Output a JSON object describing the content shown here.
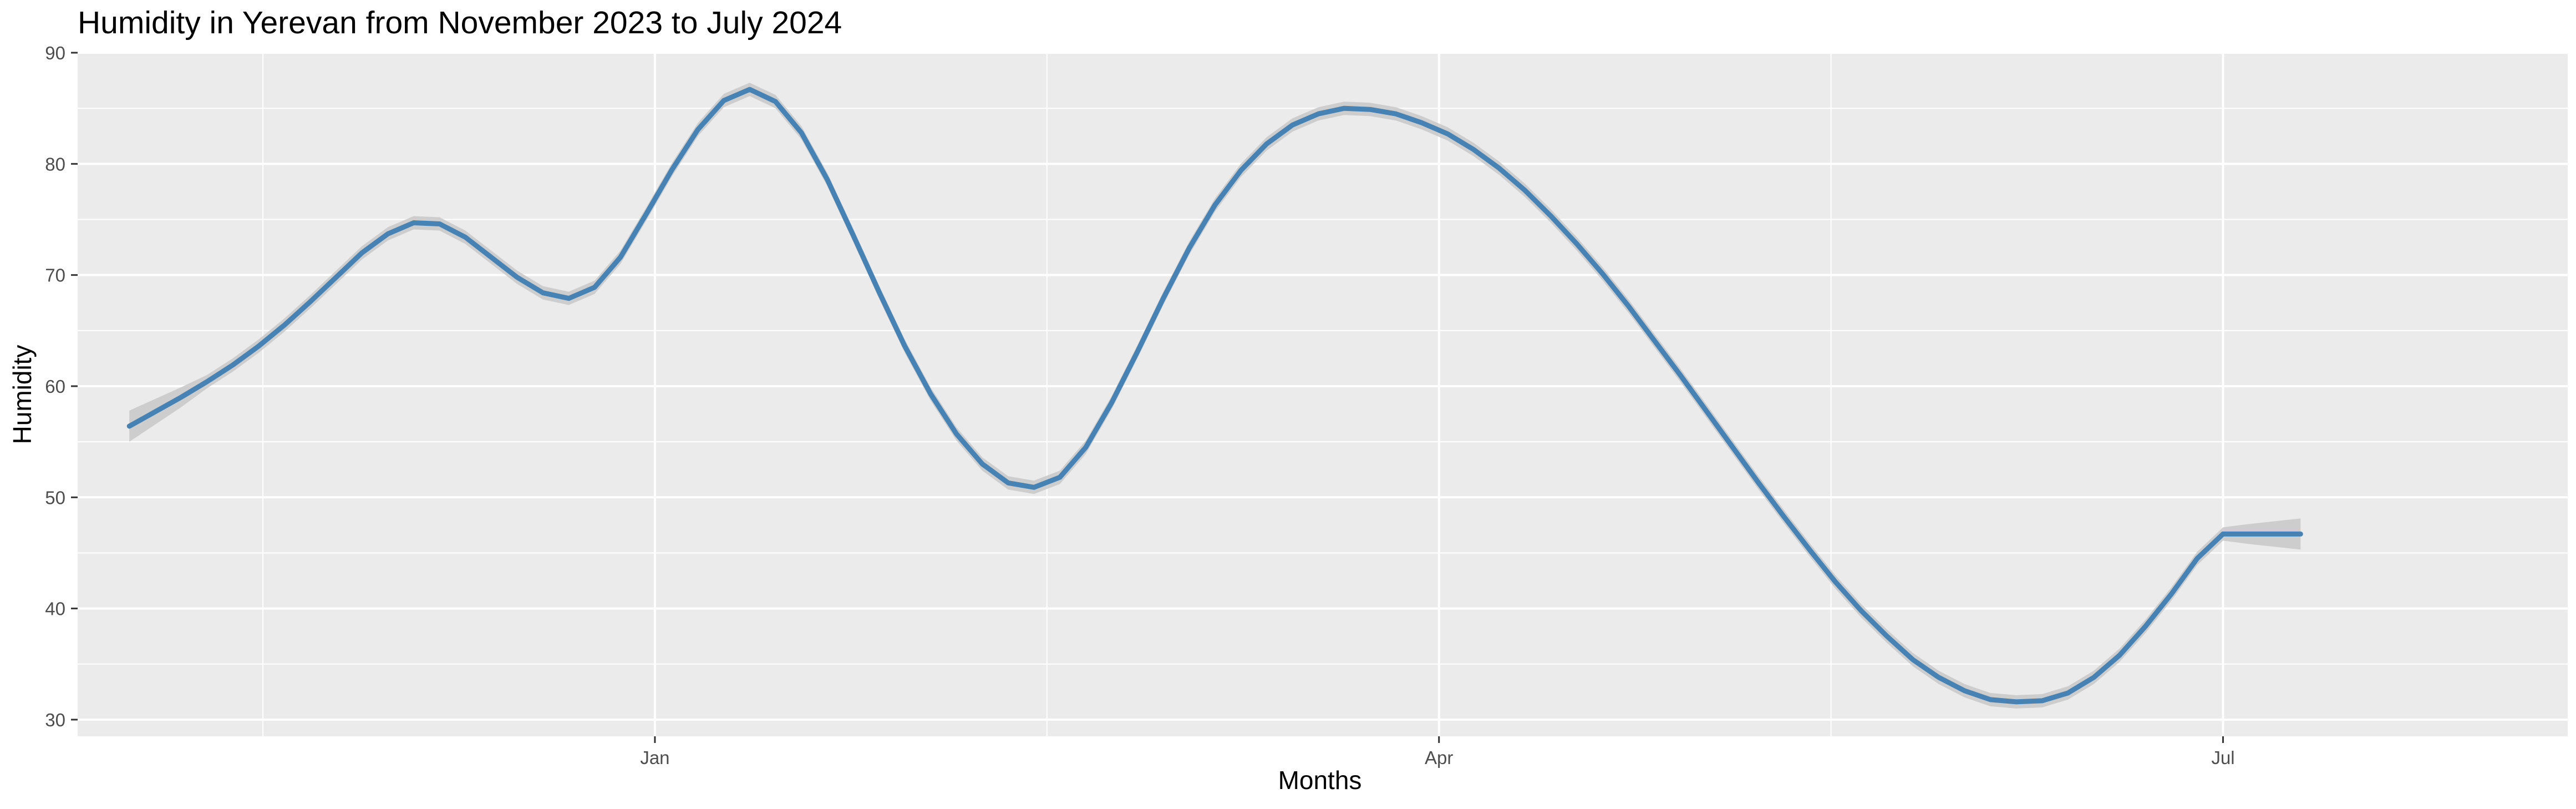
{
  "chart_data": {
    "type": "line",
    "title": "Humidity in Yerevan from November 2023 to July 2024",
    "xlabel": "Months",
    "ylabel": "Humidity",
    "x_tick_labels": [
      "Jan",
      "Apr",
      "Jul"
    ],
    "x_tick_dates": [
      "2024-01-01",
      "2024-04-01",
      "2024-07-01"
    ],
    "xlim": [
      "2023-10-26",
      "2024-07-41"
    ],
    "y_ticks": [
      30,
      40,
      50,
      60,
      70,
      80,
      90
    ],
    "ylim": [
      28.5,
      90
    ],
    "grid": true,
    "legend": "none",
    "colors": {
      "line": "#4682b4",
      "ribbon": "#c8c8c8",
      "panel": "#ebebeb",
      "grid": "#ffffff"
    },
    "series": [
      {
        "x": [
          "2023-11-01",
          "2023-11-04",
          "2023-11-07",
          "2023-11-10",
          "2023-11-13",
          "2023-11-16",
          "2023-11-19",
          "2023-11-22",
          "2023-11-25",
          "2023-11-28",
          "2023-12-01",
          "2023-12-04",
          "2023-12-07",
          "2023-12-10",
          "2023-12-13",
          "2023-12-16",
          "2023-12-19",
          "2023-12-22",
          "2023-12-25",
          "2023-12-28",
          "2023-12-31",
          "2024-01-03",
          "2024-01-06",
          "2024-01-09",
          "2024-01-12",
          "2024-01-15",
          "2024-01-18",
          "2024-01-21",
          "2024-01-24",
          "2024-01-27",
          "2024-01-30",
          "2024-02-02",
          "2024-02-05",
          "2024-02-08",
          "2024-02-11",
          "2024-02-14",
          "2024-02-17",
          "2024-02-20",
          "2024-02-23",
          "2024-02-26",
          "2024-02-29",
          "2024-03-03",
          "2024-03-06",
          "2024-03-09",
          "2024-03-12",
          "2024-03-15",
          "2024-03-18",
          "2024-03-21",
          "2024-03-24",
          "2024-03-27",
          "2024-03-30",
          "2024-04-02",
          "2024-04-05",
          "2024-04-08",
          "2024-04-11",
          "2024-04-14",
          "2024-04-17",
          "2024-04-20",
          "2024-04-23",
          "2024-04-26",
          "2024-04-29",
          "2024-05-02",
          "2024-05-05",
          "2024-05-08",
          "2024-05-11",
          "2024-05-14",
          "2024-05-17",
          "2024-05-20",
          "2024-05-23",
          "2024-05-26",
          "2024-05-29",
          "2024-06-01",
          "2024-06-04",
          "2024-06-07",
          "2024-06-10",
          "2024-06-13",
          "2024-06-16",
          "2024-06-19",
          "2024-06-22",
          "2024-06-25",
          "2024-06-28",
          "2024-07-01",
          "2024-07-04",
          "2024-07-07",
          "2024-07-10"
        ],
        "y": [
          56.4,
          57.7,
          59.0,
          60.4,
          61.9,
          63.6,
          65.5,
          67.6,
          69.8,
          72.0,
          73.7,
          74.7,
          74.6,
          73.4,
          71.6,
          69.8,
          68.4,
          67.9,
          68.9,
          71.6,
          75.5,
          79.5,
          83.1,
          85.7,
          86.7,
          85.6,
          82.8,
          78.6,
          73.6,
          68.5,
          63.6,
          59.3,
          55.7,
          53.0,
          51.3,
          50.9,
          51.8,
          54.5,
          58.5,
          63.1,
          67.9,
          72.4,
          76.3,
          79.4,
          81.8,
          83.5,
          84.5,
          85.0,
          84.9,
          84.5,
          83.7,
          82.7,
          81.3,
          79.6,
          77.6,
          75.3,
          72.8,
          70.1,
          67.2,
          64.1,
          61.0,
          57.8,
          54.6,
          51.4,
          48.3,
          45.3,
          42.4,
          39.8,
          37.5,
          35.4,
          33.8,
          32.6,
          31.8,
          31.6,
          31.7,
          32.4,
          33.8,
          35.8,
          38.4,
          41.3,
          44.5,
          46.7,
          46.7,
          46.7,
          46.7
        ]
      }
    ]
  }
}
